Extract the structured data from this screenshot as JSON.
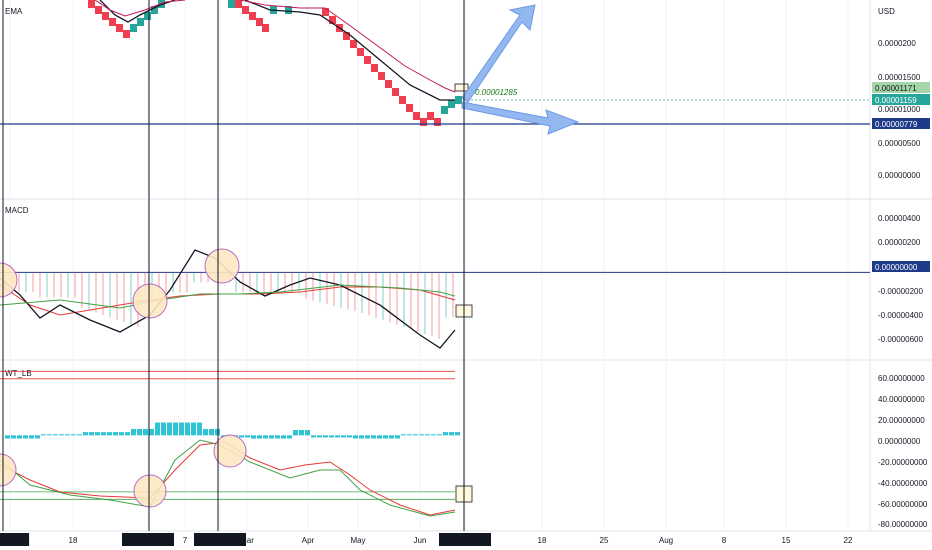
{
  "panels": {
    "price": {
      "label": "EMA",
      "currency": "USD"
    },
    "macd": {
      "label": "MACD"
    },
    "wt": {
      "label": "WT_LB"
    }
  },
  "chart_data": [
    {
      "type": "renko",
      "title": "EMA",
      "unit": "USD",
      "ylim": [
        0,
        3.3e-06
      ],
      "tick_labels": [
        "0.0000200",
        "0.00001500",
        "0.00001000",
        "0.00000500",
        "0.00000000"
      ],
      "price_tags": {
        "ema_red": "0.00001171",
        "last": "0.00001159",
        "level": "0.00000779"
      },
      "annotation": "0.00001285",
      "bricks_up_color": "#26a69a",
      "bricks_down_color": "#ef3e4f",
      "renko_down_bricks": [
        [
          "Dec '21",
          3e-06
        ],
        [
          "Dec '21",
          2.9e-06
        ],
        [
          "Dec '21",
          2.8e-06
        ],
        [
          "Jan '22",
          2.7e-06
        ],
        [
          "Jan '22",
          2.6e-06
        ],
        [
          "Jan '22",
          2.5e-06
        ],
        [
          "Feb '22",
          3e-06
        ],
        [
          "Feb '22",
          2.9e-06
        ],
        [
          "Feb '22",
          2.8e-06
        ],
        [
          "Mar '22",
          3e-06
        ],
        [
          "Mar '22",
          2.9e-06
        ],
        [
          "Apr '22",
          2.9e-06
        ],
        [
          "Apr '22",
          2.8e-06
        ],
        [
          "Apr '22",
          2.7e-06
        ],
        [
          "May '22",
          2.6e-06
        ],
        [
          "May '22",
          2.5e-06
        ],
        [
          "May '22",
          2.4e-06
        ],
        [
          "May '22",
          2.3e-06
        ],
        [
          "May '22",
          2.2e-06
        ],
        [
          "May '22",
          2.1e-06
        ],
        [
          "Jun '22",
          2e-06
        ],
        [
          "Jun '22",
          1.9e-06
        ],
        [
          "Jun '22",
          1.8e-06
        ],
        [
          "Jun '22",
          1.7e-06
        ],
        [
          "Jun '22",
          1.6e-06
        ],
        [
          "Jun '22",
          1.5e-06
        ],
        [
          "Jun '22",
          1.4e-06
        ],
        [
          "Jun '22",
          1.3e-06
        ],
        [
          "Jun '22",
          1.2e-06
        ],
        [
          "Jun '22",
          1.1e-06
        ],
        [
          "Jun '22",
          1e-06
        ],
        [
          "Jun '22",
          9e-07
        ],
        [
          "Jun '22",
          8e-07
        ]
      ],
      "renko_up_bricks": [
        [
          "Jan '22",
          2.6e-06
        ],
        [
          "Jan '22",
          2.7e-06
        ],
        [
          "Feb '22",
          2.8e-06
        ],
        [
          "Feb '22",
          2.9e-06
        ],
        [
          "Mar '22",
          3e-06
        ],
        [
          "Mar '22",
          3.1e-06
        ],
        [
          "Apr '22",
          3e-06
        ],
        [
          "Apr '22",
          3.1e-06
        ],
        [
          "Jul '22",
          9e-07
        ],
        [
          "Jul '22",
          1e-06
        ],
        [
          "Jul '22",
          1.1e-06
        ]
      ],
      "ema_black": [
        [
          "Dec '21",
          3.3e-06
        ],
        [
          "Jan '22",
          2.8e-06
        ],
        [
          "Feb '22",
          3e-06
        ],
        [
          "Mar '22",
          3.2e-06
        ],
        [
          "Apr '22",
          3e-06
        ],
        [
          "May '22",
          2.5e-06
        ],
        [
          "Jun '22",
          1.6e-06
        ],
        [
          "Jul '22",
          1e-06
        ]
      ],
      "ema_red": [
        [
          "Dec '21",
          3.3e-06
        ],
        [
          "Jan '22",
          2.9e-06
        ],
        [
          "Feb '22",
          3.1e-06
        ],
        [
          "Mar '22",
          3.3e-06
        ],
        [
          "Apr '22",
          3.1e-06
        ],
        [
          "May '22",
          2.7e-06
        ],
        [
          "Jun '22",
          1.9e-06
        ],
        [
          "Jul '22",
          1.2e-06
        ]
      ]
    },
    {
      "type": "bar+line",
      "title": "MACD",
      "ylim": [
        -7e-07,
        5e-07
      ],
      "tick_labels": [
        "0.00000400",
        "0.00000200",
        "0.00000000",
        "-0.00000200",
        "-0.00000400",
        "-0.00000600"
      ],
      "zero_tag": "0.00000000",
      "macd_line": [
        [
          "Dec '21",
          -1e-07
        ],
        [
          "Jan '22",
          -3e-07
        ],
        [
          "Jan '22",
          -5e-07
        ],
        [
          "Feb '22",
          -4e-07
        ],
        [
          "Feb '22",
          1e-07
        ],
        [
          "Feb '22",
          1.5e-07
        ],
        [
          "Mar '22",
          -3e-07
        ],
        [
          "Apr '22",
          -1e-07
        ],
        [
          "Apr '22",
          -2e-07
        ],
        [
          "May '22",
          -3e-07
        ],
        [
          "Jun '22",
          -6e-07
        ],
        [
          "Jul '22",
          -5e-07
        ]
      ],
      "signal_line": [
        [
          "Dec '21",
          -3e-07
        ],
        [
          "Jan '22",
          -2.5e-07
        ],
        [
          "Feb '22",
          -3.5e-07
        ],
        [
          "Feb '22",
          -3e-07
        ],
        [
          "Mar '22",
          -2.5e-07
        ],
        [
          "Apr '22",
          -1.5e-07
        ],
        [
          "May '22",
          -1.7e-07
        ],
        [
          "Jun '22",
          -2.5e-07
        ],
        [
          "Jul '22",
          -3e-07
        ]
      ]
    },
    {
      "type": "bar+line",
      "title": "WT_LB",
      "ylim": [
        -85,
        65
      ],
      "tick_labels": [
        "60.00000000",
        "40.00000000",
        "20.00000000",
        "0.00000000",
        "-20.00000000",
        "-40.00000000",
        "-60.00000000",
        "-80.00000000"
      ],
      "overbought_levels": [
        60,
        53
      ],
      "oversold_levels": [
        -53,
        -60
      ],
      "histogram": [
        [
          "Dec '21",
          -2
        ],
        [
          "Jan '22",
          2
        ],
        [
          "Feb '22",
          10
        ],
        [
          "Feb '22",
          15
        ],
        [
          "Mar '22",
          -3
        ],
        [
          "Apr '22",
          5
        ],
        [
          "May '22",
          -3
        ],
        [
          "Jun '22",
          2
        ],
        [
          "Jul '22",
          3
        ]
      ],
      "wt1": [
        [
          "Dec '21",
          -30
        ],
        [
          "Jan '22",
          -55
        ],
        [
          "Feb '22",
          -65
        ],
        [
          "Feb '22",
          -20
        ],
        [
          "Feb '22",
          0
        ],
        [
          "Mar '22",
          -15
        ],
        [
          "Apr '22",
          -20
        ],
        [
          "May '22",
          -40
        ],
        [
          "Jun '22",
          -70
        ],
        [
          "Jul '22",
          -68
        ]
      ],
      "wt2": [
        [
          "Dec '21",
          -25
        ],
        [
          "Jan '22",
          -50
        ],
        [
          "Feb '22",
          -60
        ],
        [
          "Feb '22",
          -10
        ],
        [
          "Feb '22",
          -5
        ],
        [
          "Mar '22",
          -20
        ],
        [
          "Apr '22",
          -15
        ],
        [
          "May '22",
          -35
        ],
        [
          "Jun '22",
          -65
        ],
        [
          "Jul '22",
          -68
        ]
      ]
    }
  ],
  "x_axis": {
    "labels": [
      "Dec '21",
      "18",
      "06 Feb '22",
      "7",
      "20 Feb '22",
      "Mar",
      "Apr",
      "May",
      "Jun",
      "09 Jul '22",
      "18",
      "25",
      "Aug",
      "8",
      "15",
      "22"
    ],
    "highlighted": [
      "Dec '21",
      "06 Feb '22",
      "20 Feb '22",
      "09 Jul '22"
    ]
  }
}
